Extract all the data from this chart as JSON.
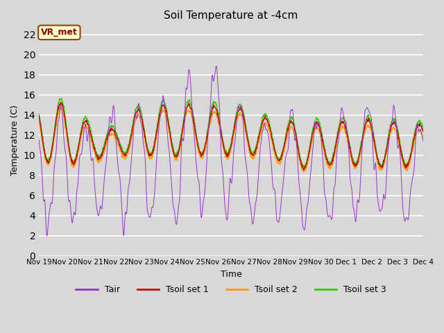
{
  "title": "Soil Temperature at -4cm",
  "xlabel": "Time",
  "ylabel": "Temperature (C)",
  "ylim": [
    0,
    23
  ],
  "yticks": [
    0,
    2,
    4,
    6,
    8,
    10,
    12,
    14,
    16,
    18,
    20,
    22
  ],
  "annotation_text": "VR_met",
  "annotation_bg": "#FFFFCC",
  "annotation_border": "#8B4513",
  "annotation_text_color": "#8B0000",
  "colors": {
    "Tair": "#9933CC",
    "Tsoil1": "#CC0000",
    "Tsoil2": "#FF9900",
    "Tsoil3": "#33CC00"
  },
  "legend_labels": [
    "Tair",
    "Tsoil set 1",
    "Tsoil set 2",
    "Tsoil set 3"
  ],
  "plot_bg_color": "#D8D8D8",
  "x_tick_labels": [
    "Nov 19",
    "Nov 20",
    "Nov 21",
    "Nov 22",
    "Nov 23",
    "Nov 24",
    "Nov 25",
    "Nov 26",
    "Nov 27",
    "Nov 28",
    "Nov 29",
    "Nov 30",
    "Dec 1",
    "Dec 2",
    "Dec 3",
    "Dec 4"
  ],
  "n_points": 1440,
  "seed": 42
}
